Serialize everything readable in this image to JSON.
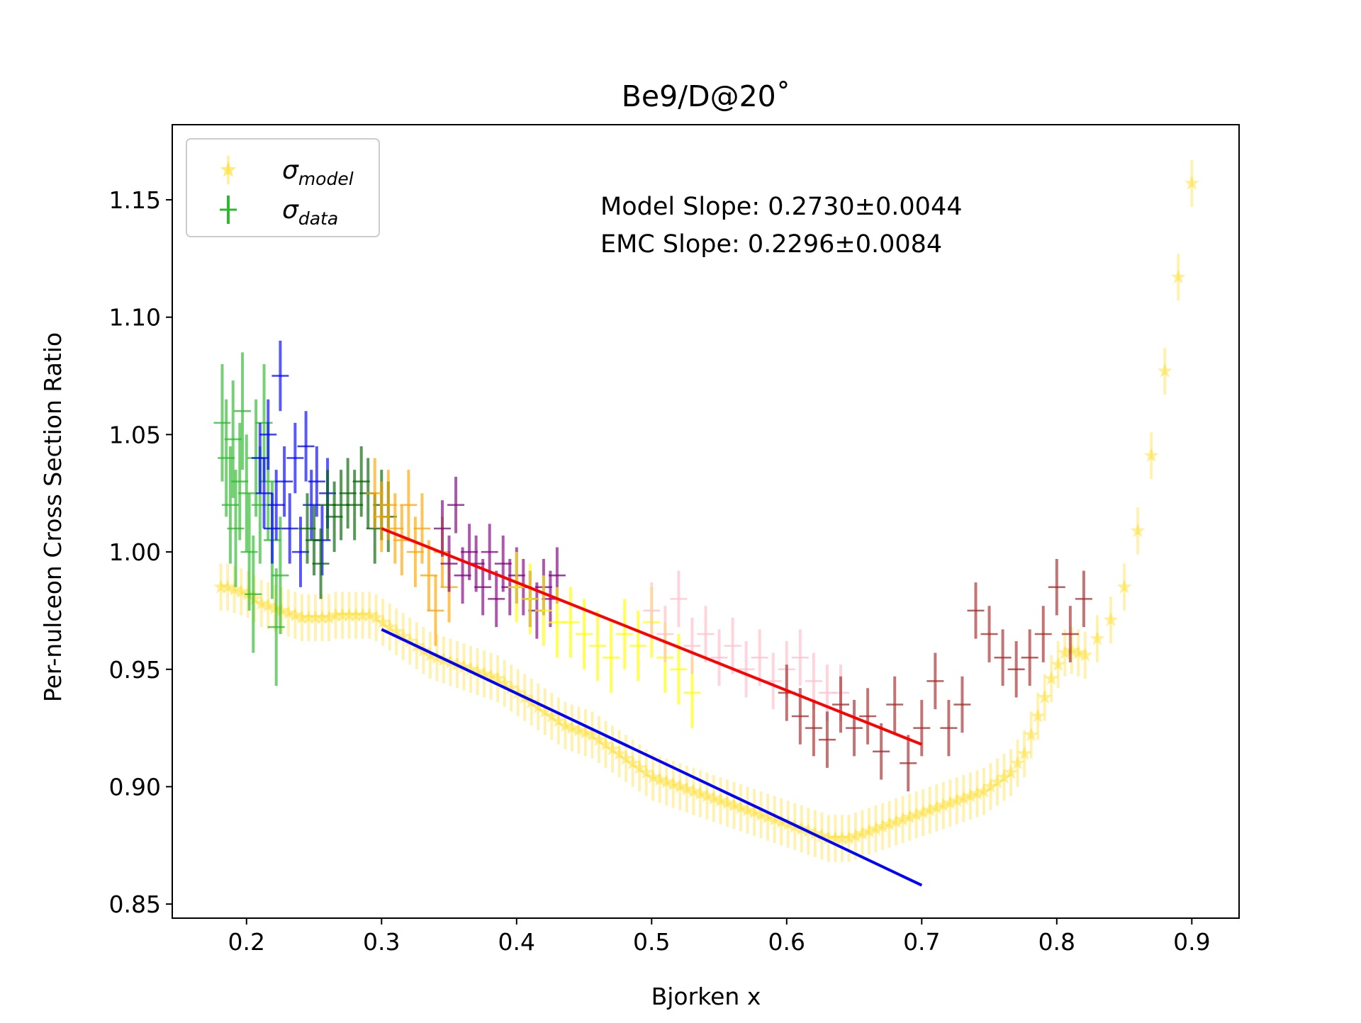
{
  "chart_data": {
    "type": "scatter",
    "title": "Be9/D@20˚",
    "xlabel": "Bjorken x",
    "ylabel": "Per-nulceon Cross Section Ratio",
    "xlim": [
      0.145,
      0.935
    ],
    "ylim": [
      0.844,
      1.182
    ],
    "x_ticks": [
      0.2,
      0.3,
      0.4,
      0.5,
      0.6,
      0.7,
      0.8,
      0.9
    ],
    "x_tick_labels": [
      "0.2",
      "0.3",
      "0.4",
      "0.5",
      "0.6",
      "0.7",
      "0.8",
      "0.9"
    ],
    "y_ticks": [
      0.85,
      0.9,
      0.95,
      1.0,
      1.05,
      1.1,
      1.15
    ],
    "y_tick_labels": [
      "0.85",
      "0.90",
      "0.95",
      "1.00",
      "1.05",
      "1.10",
      "1.15"
    ],
    "grid": false,
    "legend": {
      "position": "upper-left",
      "entries": [
        {
          "symbol": "sigma",
          "subscript": "model",
          "marker": "star",
          "color": "#FFD700"
        },
        {
          "symbol": "sigma",
          "subscript": "data",
          "marker": "plus",
          "color": "#2db82d"
        }
      ]
    },
    "annotations": [
      "Model Slope: 0.2730±0.0044",
      "EMC Slope: 0.2296±0.0084"
    ],
    "model_series": {
      "marker": "star",
      "color": "#FFD700",
      "x": [
        0.181,
        0.186,
        0.191,
        0.196,
        0.201,
        0.206,
        0.211,
        0.216,
        0.221,
        0.226,
        0.231,
        0.236,
        0.241,
        0.246,
        0.251,
        0.256,
        0.261,
        0.266,
        0.271,
        0.276,
        0.281,
        0.286,
        0.291,
        0.296,
        0.301,
        0.306,
        0.311,
        0.316,
        0.321,
        0.326,
        0.331,
        0.336,
        0.341,
        0.346,
        0.351,
        0.356,
        0.361,
        0.366,
        0.371,
        0.376,
        0.381,
        0.386,
        0.391,
        0.396,
        0.401,
        0.406,
        0.411,
        0.416,
        0.421,
        0.426,
        0.431,
        0.436,
        0.441,
        0.446,
        0.451,
        0.456,
        0.461,
        0.466,
        0.471,
        0.476,
        0.481,
        0.486,
        0.491,
        0.496,
        0.501,
        0.506,
        0.511,
        0.516,
        0.521,
        0.526,
        0.531,
        0.536,
        0.541,
        0.546,
        0.551,
        0.556,
        0.561,
        0.566,
        0.571,
        0.576,
        0.581,
        0.586,
        0.591,
        0.596,
        0.601,
        0.606,
        0.611,
        0.616,
        0.621,
        0.626,
        0.631,
        0.636,
        0.641,
        0.646,
        0.651,
        0.656,
        0.661,
        0.666,
        0.671,
        0.676,
        0.681,
        0.686,
        0.691,
        0.696,
        0.701,
        0.706,
        0.711,
        0.716,
        0.721,
        0.726,
        0.731,
        0.736,
        0.741,
        0.746,
        0.751,
        0.756,
        0.761,
        0.766,
        0.771,
        0.776,
        0.781,
        0.786,
        0.791,
        0.796,
        0.801,
        0.806,
        0.811,
        0.816,
        0.821,
        0.83,
        0.84,
        0.85,
        0.86,
        0.87,
        0.88,
        0.89,
        0.9
      ],
      "y": [
        0.985,
        0.985,
        0.984,
        0.983,
        0.982,
        0.98,
        0.978,
        0.977,
        0.976,
        0.975,
        0.974,
        0.973,
        0.972,
        0.972,
        0.972,
        0.972,
        0.972,
        0.973,
        0.973,
        0.973,
        0.973,
        0.973,
        0.973,
        0.972,
        0.97,
        0.968,
        0.966,
        0.964,
        0.962,
        0.96,
        0.958,
        0.956,
        0.955,
        0.954,
        0.953,
        0.952,
        0.951,
        0.95,
        0.949,
        0.948,
        0.947,
        0.946,
        0.944,
        0.942,
        0.94,
        0.938,
        0.936,
        0.934,
        0.932,
        0.93,
        0.928,
        0.926,
        0.925,
        0.924,
        0.923,
        0.922,
        0.92,
        0.918,
        0.916,
        0.914,
        0.912,
        0.91,
        0.908,
        0.906,
        0.904,
        0.903,
        0.902,
        0.901,
        0.9,
        0.899,
        0.898,
        0.897,
        0.896,
        0.895,
        0.894,
        0.893,
        0.892,
        0.891,
        0.89,
        0.889,
        0.888,
        0.887,
        0.886,
        0.885,
        0.884,
        0.883,
        0.882,
        0.881,
        0.88,
        0.879,
        0.878,
        0.878,
        0.878,
        0.878,
        0.879,
        0.88,
        0.881,
        0.882,
        0.883,
        0.884,
        0.885,
        0.886,
        0.887,
        0.888,
        0.889,
        0.89,
        0.891,
        0.892,
        0.893,
        0.894,
        0.895,
        0.896,
        0.897,
        0.898,
        0.9,
        0.902,
        0.904,
        0.906,
        0.91,
        0.914,
        0.922,
        0.93,
        0.938,
        0.946,
        0.952,
        0.957,
        0.958,
        0.957,
        0.956,
        0.963,
        0.971,
        0.985,
        1.009,
        1.041,
        1.077,
        1.117,
        1.157
      ],
      "yerr": [
        0.01,
        0.01,
        0.01,
        0.01,
        0.01,
        0.01,
        0.01,
        0.01,
        0.01,
        0.01,
        0.01,
        0.01,
        0.01,
        0.01,
        0.01,
        0.01,
        0.01,
        0.01,
        0.01,
        0.01,
        0.01,
        0.01,
        0.01,
        0.01,
        0.01,
        0.01,
        0.01,
        0.01,
        0.01,
        0.01,
        0.01,
        0.01,
        0.01,
        0.01,
        0.01,
        0.01,
        0.01,
        0.01,
        0.01,
        0.01,
        0.01,
        0.01,
        0.01,
        0.01,
        0.01,
        0.01,
        0.01,
        0.01,
        0.01,
        0.01,
        0.01,
        0.01,
        0.01,
        0.01,
        0.01,
        0.01,
        0.01,
        0.01,
        0.01,
        0.01,
        0.01,
        0.01,
        0.01,
        0.01,
        0.01,
        0.01,
        0.01,
        0.01,
        0.01,
        0.01,
        0.01,
        0.01,
        0.01,
        0.01,
        0.01,
        0.01,
        0.01,
        0.01,
        0.01,
        0.01,
        0.01,
        0.01,
        0.01,
        0.01,
        0.01,
        0.01,
        0.01,
        0.01,
        0.01,
        0.01,
        0.01,
        0.01,
        0.01,
        0.01,
        0.01,
        0.01,
        0.01,
        0.01,
        0.01,
        0.01,
        0.01,
        0.01,
        0.01,
        0.01,
        0.01,
        0.01,
        0.01,
        0.01,
        0.01,
        0.01,
        0.01,
        0.01,
        0.01,
        0.01,
        0.01,
        0.01,
        0.01,
        0.01,
        0.01,
        0.01,
        0.01,
        0.01,
        0.01,
        0.01,
        0.01,
        0.01,
        0.01,
        0.01,
        0.01,
        0.01,
        0.01,
        0.01,
        0.01,
        0.01,
        0.01,
        0.01,
        0.01
      ]
    },
    "data_series": [
      {
        "color": "#2db82d",
        "x": [
          0.182,
          0.185,
          0.188,
          0.19,
          0.192,
          0.195,
          0.197,
          0.2,
          0.202,
          0.205,
          0.207,
          0.21,
          0.213,
          0.216,
          0.219,
          0.222,
          0.225
        ],
        "y": [
          1.055,
          1.04,
          1.02,
          1.048,
          1.01,
          1.03,
          1.06,
          1.025,
          1.0,
          0.982,
          1.04,
          1.02,
          1.055,
          1.03,
          1.005,
          0.968,
          0.99
        ],
        "yerr": [
          0.025,
          0.025,
          0.025,
          0.025,
          0.025,
          0.025,
          0.025,
          0.025,
          0.025,
          0.025,
          0.025,
          0.025,
          0.025,
          0.025,
          0.025,
          0.025,
          0.025
        ]
      },
      {
        "color": "#0000ff",
        "x": [
          0.21,
          0.213,
          0.216,
          0.219,
          0.222,
          0.225,
          0.228,
          0.232,
          0.236,
          0.24,
          0.244,
          0.248,
          0.252,
          0.256,
          0.26
        ],
        "y": [
          1.04,
          1.025,
          1.05,
          1.01,
          1.02,
          1.075,
          1.03,
          1.01,
          1.04,
          1.0,
          1.045,
          1.02,
          1.03,
          1.005,
          1.025
        ],
        "yerr": [
          0.015,
          0.015,
          0.015,
          0.015,
          0.015,
          0.015,
          0.015,
          0.015,
          0.015,
          0.015,
          0.015,
          0.015,
          0.015,
          0.015,
          0.015
        ]
      },
      {
        "color": "#006400",
        "x": [
          0.245,
          0.25,
          0.255,
          0.26,
          0.265,
          0.27,
          0.275,
          0.28,
          0.285,
          0.29,
          0.295,
          0.3,
          0.305
        ],
        "y": [
          1.01,
          1.005,
          0.995,
          1.02,
          1.015,
          1.02,
          1.025,
          1.02,
          1.03,
          1.025,
          1.01,
          1.02,
          1.015
        ],
        "yerr": [
          0.015,
          0.015,
          0.015,
          0.015,
          0.015,
          0.015,
          0.015,
          0.015,
          0.015,
          0.015,
          0.015,
          0.015,
          0.015
        ]
      },
      {
        "color": "#FFA500",
        "x": [
          0.295,
          0.3,
          0.305,
          0.31,
          0.315,
          0.32,
          0.325,
          0.33,
          0.335,
          0.34,
          0.345,
          0.35
        ],
        "y": [
          1.025,
          1.015,
          1.02,
          1.01,
          1.005,
          1.02,
          1.0,
          1.01,
          0.99,
          0.975,
          1.0,
          0.985
        ],
        "yerr": [
          0.015,
          0.015,
          0.015,
          0.015,
          0.015,
          0.015,
          0.015,
          0.015,
          0.015,
          0.015,
          0.015,
          0.015
        ]
      },
      {
        "color": "#800080",
        "x": [
          0.345,
          0.35,
          0.355,
          0.36,
          0.365,
          0.37,
          0.375,
          0.38,
          0.385,
          0.39,
          0.395,
          0.4,
          0.405,
          0.41,
          0.415,
          0.42,
          0.425,
          0.43
        ],
        "y": [
          1.01,
          0.995,
          1.02,
          0.99,
          1.0,
          0.995,
          0.985,
          1.0,
          0.98,
          0.995,
          0.985,
          0.99,
          0.985,
          0.98,
          0.975,
          0.985,
          0.98,
          0.99
        ],
        "yerr": [
          0.012,
          0.012,
          0.012,
          0.012,
          0.012,
          0.012,
          0.012,
          0.012,
          0.012,
          0.012,
          0.012,
          0.012,
          0.012,
          0.012,
          0.012,
          0.012,
          0.012,
          0.012
        ]
      },
      {
        "color": "#FFFF00",
        "x": [
          0.4,
          0.41,
          0.42,
          0.43,
          0.44,
          0.45,
          0.46,
          0.47,
          0.48,
          0.49,
          0.5,
          0.51,
          0.52,
          0.53
        ],
        "y": [
          0.985,
          0.98,
          0.975,
          0.97,
          0.97,
          0.965,
          0.96,
          0.955,
          0.965,
          0.96,
          0.97,
          0.955,
          0.95,
          0.94
        ],
        "yerr": [
          0.015,
          0.015,
          0.015,
          0.015,
          0.015,
          0.015,
          0.015,
          0.015,
          0.015,
          0.015,
          0.015,
          0.015,
          0.015,
          0.015
        ]
      },
      {
        "color": "#FFC0CB",
        "x": [
          0.5,
          0.51,
          0.52,
          0.53,
          0.54,
          0.55,
          0.56,
          0.57,
          0.58,
          0.59,
          0.6,
          0.61,
          0.62,
          0.63,
          0.64
        ],
        "y": [
          0.975,
          0.965,
          0.98,
          0.96,
          0.965,
          0.955,
          0.96,
          0.95,
          0.955,
          0.945,
          0.95,
          0.955,
          0.945,
          0.94,
          0.94
        ],
        "yerr": [
          0.012,
          0.012,
          0.012,
          0.012,
          0.012,
          0.012,
          0.012,
          0.012,
          0.012,
          0.012,
          0.012,
          0.012,
          0.012,
          0.012,
          0.012
        ]
      },
      {
        "color": "#A52A2A",
        "x": [
          0.6,
          0.61,
          0.62,
          0.63,
          0.64,
          0.65,
          0.66,
          0.67,
          0.68,
          0.69,
          0.7,
          0.71,
          0.72,
          0.73,
          0.74,
          0.75,
          0.76,
          0.77,
          0.78,
          0.79,
          0.8,
          0.81,
          0.82
        ],
        "y": [
          0.94,
          0.93,
          0.925,
          0.92,
          0.935,
          0.925,
          0.93,
          0.915,
          0.935,
          0.91,
          0.925,
          0.945,
          0.925,
          0.935,
          0.975,
          0.965,
          0.955,
          0.95,
          0.955,
          0.965,
          0.985,
          0.965,
          0.98
        ],
        "yerr": [
          0.012,
          0.012,
          0.012,
          0.012,
          0.012,
          0.012,
          0.012,
          0.012,
          0.012,
          0.012,
          0.012,
          0.012,
          0.012,
          0.012,
          0.012,
          0.012,
          0.012,
          0.012,
          0.012,
          0.012,
          0.012,
          0.012,
          0.012
        ]
      }
    ],
    "fit_lines": [
      {
        "color": "#ff0000",
        "x": [
          0.3,
          0.7
        ],
        "y": [
          1.01,
          0.918
        ]
      },
      {
        "color": "#0000ff",
        "x": [
          0.3,
          0.7
        ],
        "y": [
          0.967,
          0.858
        ]
      }
    ]
  }
}
